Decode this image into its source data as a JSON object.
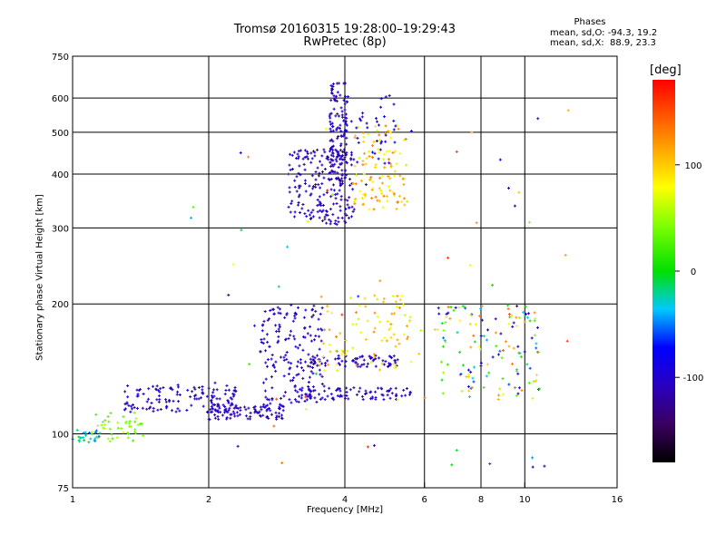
{
  "chart_data": {
    "type": "scatter",
    "title": "Tromsø 20160315 19:28:00–19:29:43",
    "subtitle": "RwPretec (8p)",
    "xlabel": "Frequency [MHz]",
    "ylabel": "Stationary phase Virtual Height [km]",
    "x_scale": "log",
    "y_scale": "log",
    "xlim": [
      1,
      16
    ],
    "ylim": [
      75,
      750
    ],
    "x_ticks": [
      "1",
      "2",
      "4",
      "6",
      "8",
      "10",
      "16"
    ],
    "x_tick_values": [
      1,
      2,
      4,
      6,
      8,
      10,
      16
    ],
    "y_ticks": [
      "75",
      "100",
      "200",
      "300",
      "400",
      "500",
      "600",
      "750"
    ],
    "y_tick_values": [
      75,
      100,
      200,
      300,
      400,
      500,
      600,
      750
    ],
    "grid": true,
    "stats": {
      "title": "Phases",
      "lines": [
        "mean, sd,O: -94.3, 19.2",
        "mean, sd,X:  88.9, 23.3"
      ]
    },
    "colorbar": {
      "label": "[deg]",
      "ticks": [
        "100",
        "0",
        "-100"
      ],
      "tick_values": [
        100,
        0,
        -100
      ],
      "range": [
        -180,
        180
      ]
    },
    "clusters": [
      {
        "x": [
          1.0,
          1.15
        ],
        "y": [
          95,
          103
        ],
        "phase": [
          -60,
          0
        ],
        "n": 25
      },
      {
        "x": [
          1.1,
          1.45
        ],
        "y": [
          96,
          112
        ],
        "phase": [
          20,
          60
        ],
        "n": 45
      },
      {
        "x": [
          1.3,
          2.3
        ],
        "y": [
          112,
          130
        ],
        "phase": [
          -120,
          -90
        ],
        "n": 130
      },
      {
        "x": [
          2.0,
          3.0
        ],
        "y": [
          108,
          118
        ],
        "phase": [
          -120,
          -90
        ],
        "n": 100
      },
      {
        "x": [
          2.6,
          3.6
        ],
        "y": [
          118,
          200
        ],
        "phase": [
          -120,
          -90
        ],
        "n": 170
      },
      {
        "x": [
          3.1,
          5.6
        ],
        "y": [
          120,
          128
        ],
        "phase": [
          -120,
          -90
        ],
        "n": 90
      },
      {
        "x": [
          3.4,
          5.3
        ],
        "y": [
          143,
          152
        ],
        "phase": [
          -120,
          -90
        ],
        "n": 70
      },
      {
        "x": [
          3.5,
          5.9
        ],
        "y": [
          140,
          210
        ],
        "phase": [
          60,
          130
        ],
        "n": 90
      },
      {
        "x": [
          6.3,
          10.8
        ],
        "y": [
          120,
          200
        ],
        "phase": [
          -120,
          140
        ],
        "n": 140
      },
      {
        "x": [
          3.0,
          4.2
        ],
        "y": [
          305,
          460
        ],
        "phase": [
          -130,
          -90
        ],
        "n": 200
      },
      {
        "x": [
          3.7,
          4.05
        ],
        "y": [
          380,
          650
        ],
        "phase": [
          -130,
          -90
        ],
        "n": 130
      },
      {
        "x": [
          4.15,
          5.5
        ],
        "y": [
          330,
          520
        ],
        "phase": [
          60,
          140
        ],
        "n": 110
      },
      {
        "x": [
          4.0,
          5.2
        ],
        "y": [
          420,
          620
        ],
        "phase": [
          -110,
          -70
        ],
        "n": 40
      },
      {
        "x": [
          1.8,
          12.5
        ],
        "y": [
          80,
          640
        ],
        "phase": [
          -150,
          170
        ],
        "n": 60
      }
    ]
  }
}
